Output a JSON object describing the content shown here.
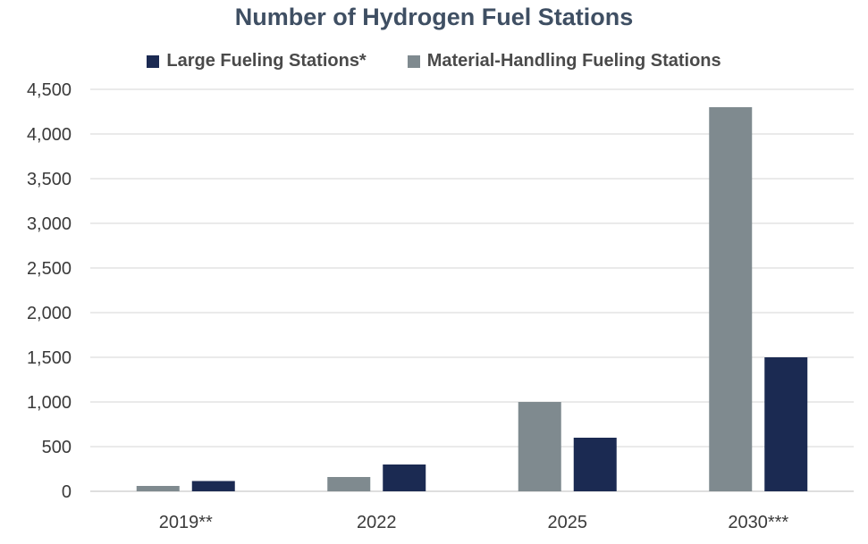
{
  "chart_data": {
    "type": "bar",
    "title": "Number of Hydrogen Fuel Stations",
    "categories": [
      "2019**",
      "2022",
      "2025",
      "2030***"
    ],
    "series": [
      {
        "name": "Material-Handling Fueling Stations",
        "color": "#7f8a8f",
        "values": [
          60,
          160,
          1000,
          4300
        ]
      },
      {
        "name": "Large Fueling Stations*",
        "color": "#1b2a52",
        "values": [
          115,
          300,
          600,
          1500
        ]
      }
    ],
    "legend_order": [
      1,
      0
    ],
    "legend_position": "top",
    "ylim": [
      0,
      4500
    ],
    "yticks": [
      0,
      500,
      1000,
      1500,
      2000,
      2500,
      3000,
      3500,
      4000,
      4500
    ],
    "ytick_labels": [
      "0",
      "500",
      "1,000",
      "1,500",
      "2,000",
      "2,500",
      "3,000",
      "3,500",
      "4,000",
      "4,500"
    ],
    "grid": true,
    "xlabel": "",
    "ylabel": ""
  }
}
